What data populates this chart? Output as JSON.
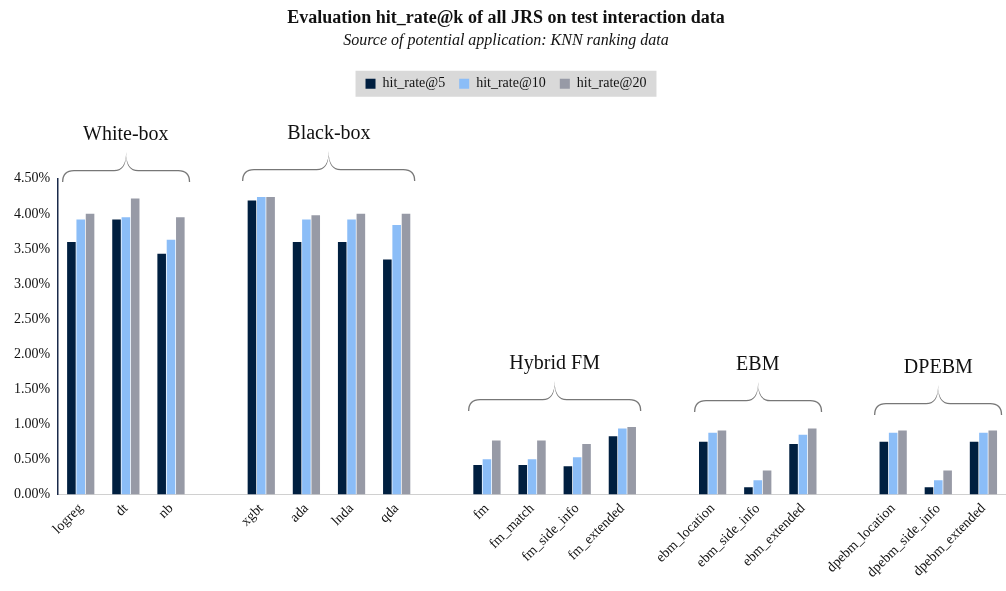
{
  "chart_data": {
    "type": "bar",
    "title": "Evaluation hit_rate@k of all JRS on test interaction data",
    "subtitle": "Source of potential application: KNN ranking data",
    "categories": [
      "logreg",
      "dt",
      "nb",
      null,
      "xgbt",
      "ada",
      "lnda",
      "qda",
      null,
      "fm",
      "fm_match",
      "fm_side_info",
      "fm_extended",
      null,
      "ebm_location",
      "ebm_side_info",
      "ebm_extended",
      null,
      "dpebm_location",
      "dpebm_side_info",
      "dpebm_extended"
    ],
    "series": [
      {
        "name": "hit_rate@5",
        "color": "#001f40",
        "values": [
          3.6,
          3.92,
          3.43,
          null,
          4.19,
          3.6,
          3.6,
          3.35,
          null,
          0.42,
          0.42,
          0.4,
          0.83,
          null,
          0.75,
          0.1,
          0.72,
          null,
          0.75,
          0.1,
          0.75
        ]
      },
      {
        "name": "hit_rate@10",
        "color": "#8bbdf7",
        "values": [
          3.92,
          3.95,
          3.63,
          null,
          4.24,
          3.92,
          3.92,
          3.84,
          null,
          0.5,
          0.5,
          0.53,
          0.94,
          null,
          0.88,
          0.2,
          0.85,
          null,
          0.88,
          0.2,
          0.88
        ]
      },
      {
        "name": "hit_rate@20",
        "color": "#979aa6",
        "values": [
          4.0,
          4.22,
          3.95,
          null,
          4.24,
          3.98,
          4.0,
          4.0,
          null,
          0.77,
          0.77,
          0.72,
          0.96,
          null,
          0.91,
          0.34,
          0.94,
          null,
          0.91,
          0.34,
          0.91
        ]
      }
    ],
    "ylim": [
      0,
      4.5
    ],
    "yticks": [
      {
        "value": 0,
        "label": "0.00%"
      },
      {
        "value": 0.5,
        "label": "0.50%"
      },
      {
        "value": 1,
        "label": "1.00%"
      },
      {
        "value": 1.5,
        "label": "1.50%"
      },
      {
        "value": 2,
        "label": "2.00%"
      },
      {
        "value": 2.5,
        "label": "2.50%"
      },
      {
        "value": 3,
        "label": "3.00%"
      },
      {
        "value": 3.5,
        "label": "3.50%"
      },
      {
        "value": 4,
        "label": "4.00%"
      },
      {
        "value": 4.5,
        "label": "4.50%"
      }
    ],
    "annotations": [
      "White-box",
      "Black-box",
      "Hybrid FM",
      "EBM",
      "DPEBM"
    ],
    "grid": false,
    "legend": "top"
  }
}
